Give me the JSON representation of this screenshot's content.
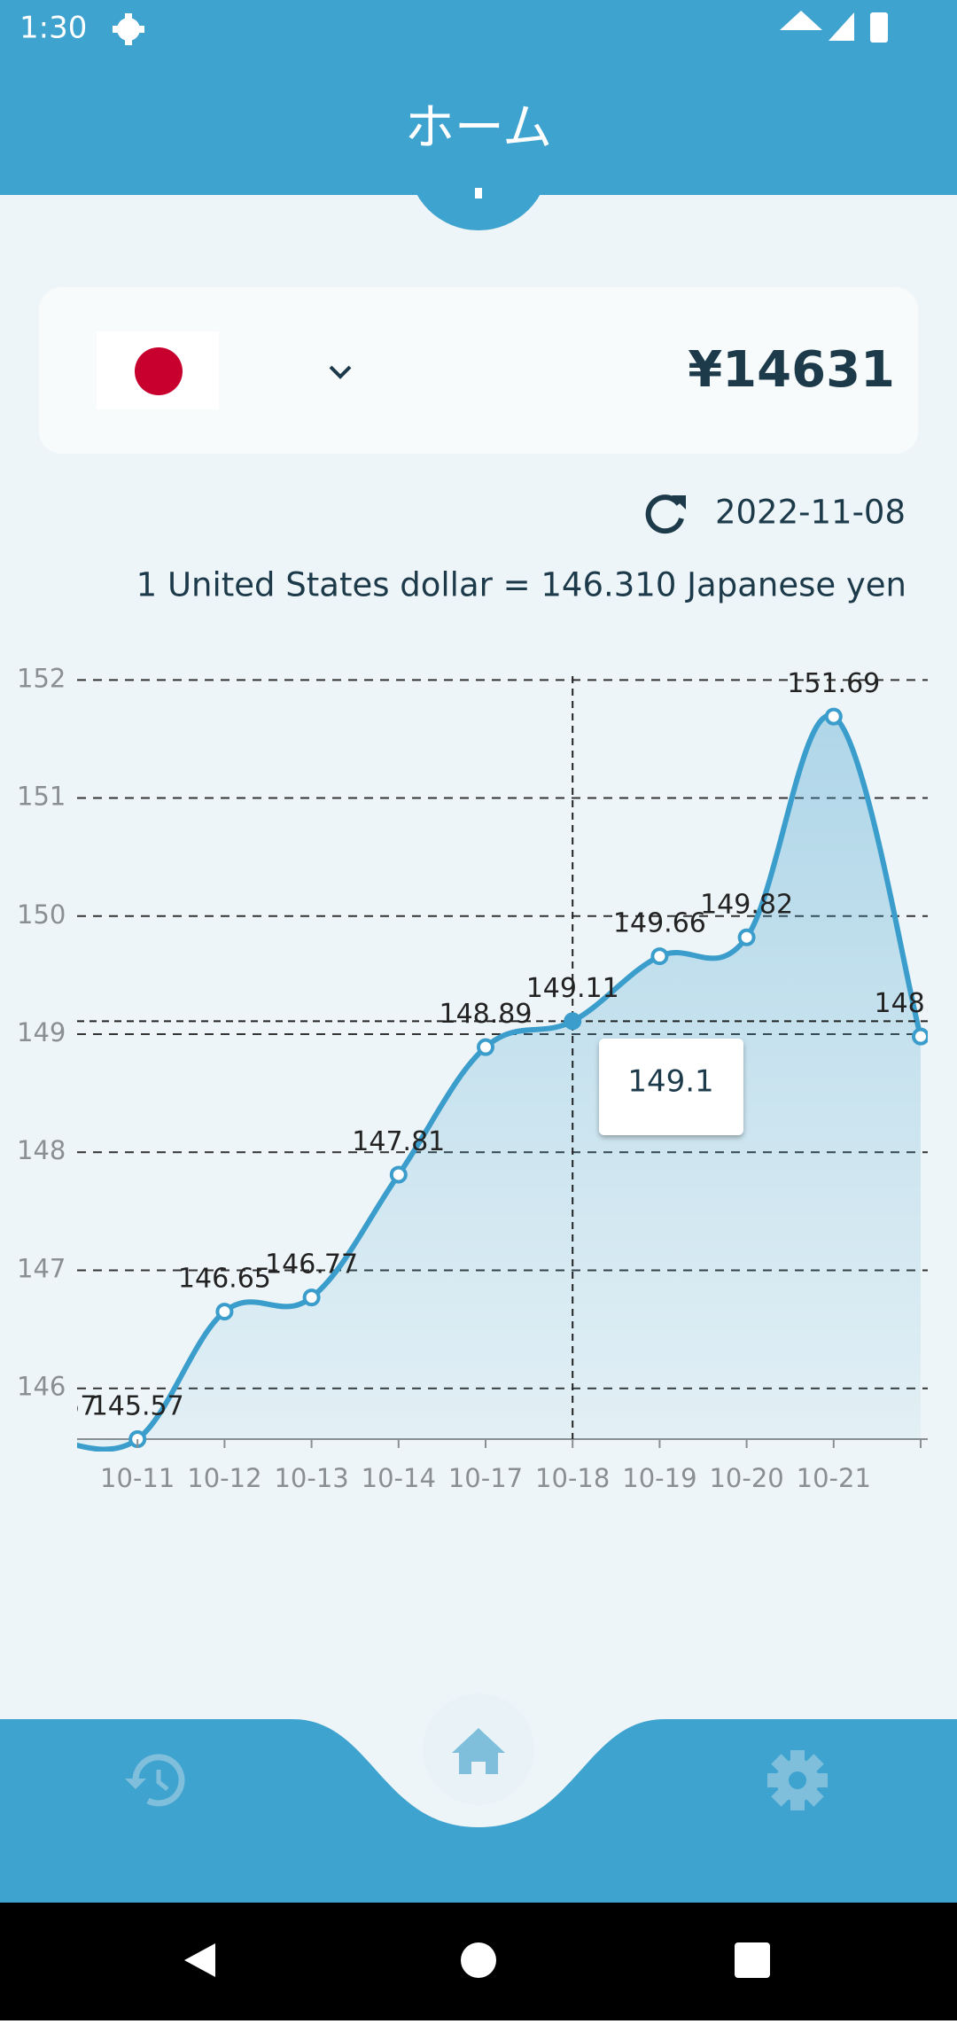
{
  "status_bar": {
    "time": "1:30"
  },
  "header": {
    "title": "ホーム"
  },
  "converter": {
    "amount": "¥14631",
    "date": "2022-11-08",
    "rate_text": "1 United States dollar = 146.310 Japanese yen"
  },
  "chart_data": {
    "type": "line",
    "categories": [
      null,
      "10-11",
      "10-12",
      "10-13",
      "10-14",
      "10-17",
      "10-18",
      "10-19",
      "10-20",
      "10-21",
      null
    ],
    "series": [
      {
        "color": "#3a9dcb",
        "values": [
          145.57,
          145.57,
          146.65,
          146.77,
          147.81,
          148.89,
          149.11,
          149.66,
          149.82,
          151.69,
          148.98
        ]
      }
    ],
    "ylim": [
      145.57,
      152.07
    ],
    "yticks": [
      146,
      147,
      148,
      149,
      150,
      151,
      152
    ],
    "grid": true,
    "selected_index": 6,
    "tooltip": "149.1"
  }
}
